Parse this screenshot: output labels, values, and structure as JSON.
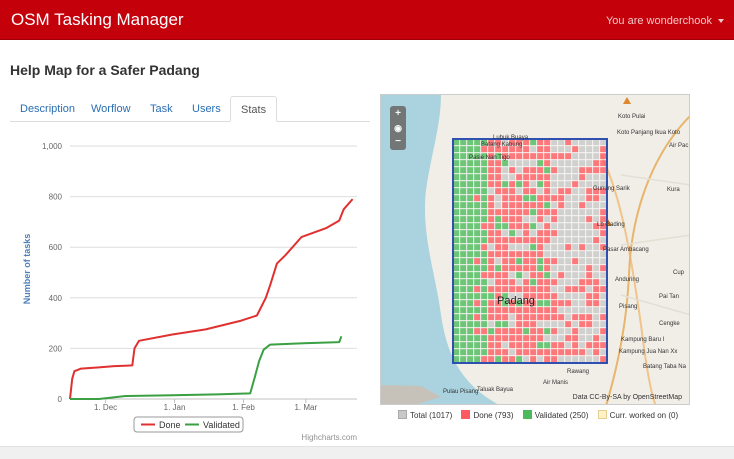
{
  "header": {
    "brand": "OSM Tasking Manager",
    "user": "You are wonderchook"
  },
  "page": {
    "title": "Help Map for a Safer Padang"
  },
  "tabs": [
    {
      "label": "Description",
      "active": false
    },
    {
      "label": "Worflow",
      "active": false
    },
    {
      "label": "Task",
      "active": false
    },
    {
      "label": "Users",
      "active": false
    },
    {
      "label": "Stats",
      "active": true
    }
  ],
  "chart_data": {
    "type": "line",
    "title": "",
    "xlabel": "",
    "ylabel": "Number of tasks",
    "ylim": [
      0,
      1000
    ],
    "x_ticks": [
      "1. Dec",
      "1. Jan",
      "1. Feb",
      "1. Mar"
    ],
    "x_range": [
      "2012-11-15",
      "2013-03-24"
    ],
    "y_ticks": [
      "0",
      "200",
      "400",
      "600",
      "800",
      "1,000"
    ],
    "grid": true,
    "legend": "bottom-center",
    "credit": "Highcharts.com",
    "series": [
      {
        "name": "Done",
        "color": "#e03030",
        "points": [
          [
            "2012-11-15",
            0
          ],
          [
            "2012-11-16",
            80
          ],
          [
            "2012-11-17",
            110
          ],
          [
            "2012-11-20",
            120
          ],
          [
            "2012-11-28",
            125
          ],
          [
            "2012-12-05",
            130
          ],
          [
            "2012-12-13",
            133
          ],
          [
            "2012-12-14",
            200
          ],
          [
            "2012-12-16",
            230
          ],
          [
            "2012-12-31",
            255
          ],
          [
            "2013-01-15",
            275
          ],
          [
            "2013-01-31",
            310
          ],
          [
            "2013-02-07",
            330
          ],
          [
            "2013-02-11",
            400
          ],
          [
            "2013-02-13",
            450
          ],
          [
            "2013-02-16",
            535
          ],
          [
            "2013-02-20",
            570
          ],
          [
            "2013-02-27",
            640
          ],
          [
            "2013-03-10",
            675
          ],
          [
            "2013-03-16",
            705
          ],
          [
            "2013-03-18",
            750
          ],
          [
            "2013-03-22",
            790
          ]
        ]
      },
      {
        "name": "Validated",
        "color": "#3aa043",
        "points": [
          [
            "2012-11-15",
            0
          ],
          [
            "2012-11-28",
            0
          ],
          [
            "2012-12-10",
            12
          ],
          [
            "2012-12-31",
            15
          ],
          [
            "2013-01-20",
            18
          ],
          [
            "2013-02-04",
            22
          ],
          [
            "2013-02-06",
            85
          ],
          [
            "2013-02-08",
            150
          ],
          [
            "2013-02-10",
            195
          ],
          [
            "2013-02-13",
            215
          ],
          [
            "2013-02-28",
            220
          ],
          [
            "2013-03-16",
            225
          ],
          [
            "2013-03-17",
            248
          ]
        ]
      }
    ]
  },
  "map": {
    "labels": [
      "Koto Pulai",
      "Koto Panjang Ikua Koto",
      "Air Pac",
      "Lubuk Buaya",
      "Batang Kabung",
      "Pasie Nan Tigo",
      "Gunung Sarik",
      "Kura",
      "Lb Gading",
      "Pasar Ambacang",
      "Anduring",
      "Cup",
      "Padang",
      "Pisang",
      "Pai Tan",
      "Cengke",
      "Kampung Baru I",
      "Kampung Jua Nan Xx",
      "Batang Taba Na",
      "Rawang",
      "Air Manis",
      "Pulau Pisang",
      "Taluak Bayua"
    ],
    "attribution": "Data CC-By-SA by OpenStreetMap",
    "zoom_in": "+",
    "zoom_out": "−",
    "legend": [
      {
        "label": "Total (1017)",
        "color": "#c8c8c8"
      },
      {
        "label": "Done (793)",
        "color": "#ff5a5f"
      },
      {
        "label": "Validated (250)",
        "color": "#4cba5a"
      },
      {
        "label": "Curr. worked on (0)",
        "color": "#fff2c8"
      }
    ]
  }
}
